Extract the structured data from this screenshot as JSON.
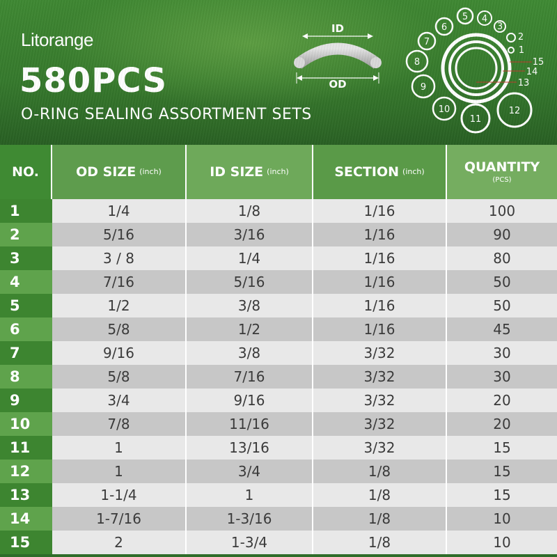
{
  "header": {
    "brand": "Litorange",
    "headline": "580PCS",
    "subhead": "O-RING SEALING ASSORTMENT SETS",
    "diagram": {
      "id_label": "ID",
      "od_label": "OD"
    },
    "size_labels": [
      "1",
      "2",
      "3",
      "4",
      "5",
      "6",
      "7",
      "8",
      "9",
      "10",
      "11",
      "12",
      "13",
      "14",
      "15"
    ]
  },
  "table": {
    "columns": {
      "no": "NO.",
      "od": "OD SIZE",
      "od_unit": "(inch)",
      "id": "ID SIZE",
      "id_unit": "(inch)",
      "section": "SECTION",
      "section_unit": "(inch)",
      "quantity": "QUANTITY",
      "quantity_unit": "(PCS)"
    },
    "rows": [
      {
        "no": "1",
        "od": "1/4",
        "id": "1/8",
        "section": "1/16",
        "qty": "100"
      },
      {
        "no": "2",
        "od": "5/16",
        "id": "3/16",
        "section": "1/16",
        "qty": "90"
      },
      {
        "no": "3",
        "od": "3 / 8",
        "id": "1/4",
        "section": "1/16",
        "qty": "80"
      },
      {
        "no": "4",
        "od": "7/16",
        "id": "5/16",
        "section": "1/16",
        "qty": "50"
      },
      {
        "no": "5",
        "od": "1/2",
        "id": "3/8",
        "section": "1/16",
        "qty": "50"
      },
      {
        "no": "6",
        "od": "5/8",
        "id": "1/2",
        "section": "1/16",
        "qty": "45"
      },
      {
        "no": "7",
        "od": "9/16",
        "id": "3/8",
        "section": "3/32",
        "qty": "30"
      },
      {
        "no": "8",
        "od": "5/8",
        "id": "7/16",
        "section": "3/32",
        "qty": "30"
      },
      {
        "no": "9",
        "od": "3/4",
        "id": "9/16",
        "section": "3/32",
        "qty": "20"
      },
      {
        "no": "10",
        "od": "7/8",
        "id": "11/16",
        "section": "3/32",
        "qty": "20"
      },
      {
        "no": "11",
        "od": "1",
        "id": "13/16",
        "section": "3/32",
        "qty": "15"
      },
      {
        "no": "12",
        "od": "1",
        "id": "3/4",
        "section": "1/8",
        "qty": "15"
      },
      {
        "no": "13",
        "od": "1-1/4",
        "id": "1",
        "section": "1/8",
        "qty": "15"
      },
      {
        "no": "14",
        "od": "1-7/16",
        "id": "1-3/16",
        "section": "1/8",
        "qty": "10"
      },
      {
        "no": "15",
        "od": "2",
        "id": "1-3/4",
        "section": "1/8",
        "qty": "10"
      }
    ]
  },
  "colors": {
    "header_green": "#357a2d",
    "no_dark": "#3d8530",
    "no_light": "#5fa34c",
    "row_light": "#e8e8e8",
    "row_dark": "#c7c7c7"
  }
}
